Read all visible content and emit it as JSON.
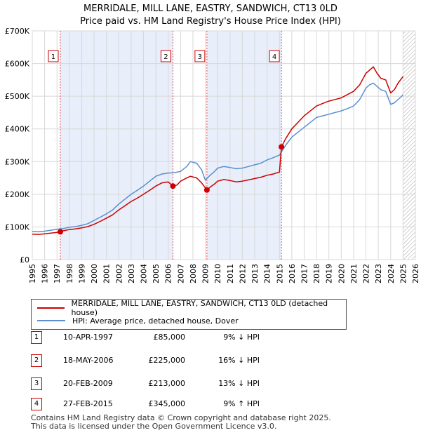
{
  "title_line1": "MERRIDALE, MILL LANE, EASTRY, SANDWICH, CT13 0LD",
  "title_line2": "Price paid vs. HM Land Registry's House Price Index (HPI)",
  "legend": {
    "property_label": "MERRIDALE, MILL LANE, EASTRY, SANDWICH, CT13 0LD (detached house)",
    "hpi_label": "HPI: Average price, detached house, Dover"
  },
  "colors": {
    "property": "#cc0000",
    "hpi": "#5b8fd0",
    "shade": "#e8eefa",
    "grid": "#d8d8d8"
  },
  "sales": [
    {
      "num": "1",
      "date": "10-APR-1997",
      "price": "£85,000",
      "hpi_delta": "9% ↓ HPI"
    },
    {
      "num": "2",
      "date": "18-MAY-2006",
      "price": "£225,000",
      "hpi_delta": "16% ↓ HPI"
    },
    {
      "num": "3",
      "date": "20-FEB-2009",
      "price": "£213,000",
      "hpi_delta": "13% ↓ HPI"
    },
    {
      "num": "4",
      "date": "27-FEB-2015",
      "price": "£345,000",
      "hpi_delta": "9% ↑ HPI"
    }
  ],
  "footer": {
    "line1": "Contains HM Land Registry data © Crown copyright and database right 2025.",
    "line2": "This data is licensed under the Open Government Licence v3.0."
  },
  "chart_data": {
    "type": "line",
    "xlim": [
      1995,
      2026
    ],
    "ylim": [
      0,
      700000
    ],
    "x_ticks": [
      1995,
      1996,
      1997,
      1998,
      1999,
      2000,
      2001,
      2002,
      2003,
      2004,
      2005,
      2006,
      2007,
      2008,
      2009,
      2010,
      2011,
      2012,
      2013,
      2014,
      2015,
      2016,
      2017,
      2018,
      2019,
      2020,
      2021,
      2022,
      2023,
      2024,
      2025,
      2026
    ],
    "y_ticks": [
      {
        "value": 0,
        "label": "£0"
      },
      {
        "value": 100000,
        "label": "£100K"
      },
      {
        "value": 200000,
        "label": "£200K"
      },
      {
        "value": 300000,
        "label": "£300K"
      },
      {
        "value": 400000,
        "label": "£400K"
      },
      {
        "value": 500000,
        "label": "£500K"
      },
      {
        "value": 600000,
        "label": "£600K"
      },
      {
        "value": 700000,
        "label": "£700K"
      }
    ],
    "shaded_periods": [
      [
        1997.27,
        2006.38
      ],
      [
        2009.13,
        2015.16
      ]
    ],
    "hatched_from": 2025.0,
    "markers": [
      {
        "label": "1",
        "x": 1997.27,
        "y": 85000
      },
      {
        "label": "2",
        "x": 2006.38,
        "y": 225000
      },
      {
        "label": "3",
        "x": 2009.13,
        "y": 213000
      },
      {
        "label": "4",
        "x": 2015.16,
        "y": 345000
      }
    ],
    "series": [
      {
        "name": "HPI: Average price, detached house, Dover",
        "x": [
          1995.0,
          1995.5,
          1996.0,
          1996.5,
          1997.0,
          1997.5,
          1998.0,
          1998.5,
          1999.0,
          1999.5,
          2000.0,
          2000.5,
          2001.0,
          2001.5,
          2002.0,
          2002.5,
          2003.0,
          2003.5,
          2004.0,
          2004.5,
          2005.0,
          2005.5,
          2006.0,
          2006.5,
          2007.0,
          2007.5,
          2007.8,
          2008.3,
          2008.7,
          2009.0,
          2009.3,
          2009.7,
          2010.0,
          2010.5,
          2011.0,
          2011.5,
          2012.0,
          2012.5,
          2013.0,
          2013.5,
          2014.0,
          2014.5,
          2015.0,
          2015.5,
          2016.0,
          2016.5,
          2017.0,
          2017.5,
          2018.0,
          2018.5,
          2019.0,
          2019.5,
          2020.0,
          2020.5,
          2021.0,
          2021.5,
          2022.0,
          2022.3,
          2022.6,
          2022.9,
          2023.2,
          2023.6,
          2024.0,
          2024.3,
          2024.6,
          2024.9,
          2025.0
        ],
        "values": [
          86000,
          85000,
          87000,
          90000,
          93000,
          95000,
          99000,
          101000,
          105000,
          110000,
          120000,
          130000,
          140000,
          152000,
          170000,
          185000,
          200000,
          212000,
          225000,
          240000,
          255000,
          262000,
          265000,
          266000,
          270000,
          285000,
          300000,
          295000,
          275000,
          243000,
          255000,
          268000,
          280000,
          285000,
          282000,
          278000,
          280000,
          285000,
          290000,
          295000,
          305000,
          312000,
          320000,
          350000,
          375000,
          390000,
          405000,
          420000,
          435000,
          440000,
          445000,
          450000,
          455000,
          462000,
          470000,
          490000,
          525000,
          535000,
          540000,
          530000,
          520000,
          515000,
          475000,
          480000,
          490000,
          500000,
          505000
        ]
      },
      {
        "name": "MERRIDALE, MILL LANE, EASTRY, SANDWICH, CT13 0LD (detached house)",
        "x": [
          1995.0,
          1995.5,
          1996.0,
          1996.5,
          1997.0,
          1997.27,
          1997.5,
          1998.0,
          1998.5,
          1999.0,
          1999.5,
          2000.0,
          2000.5,
          2001.0,
          2001.5,
          2002.0,
          2002.5,
          2003.0,
          2003.5,
          2004.0,
          2004.5,
          2005.0,
          2005.5,
          2006.0,
          2006.38,
          2006.7,
          2007.0,
          2007.5,
          2007.8,
          2008.3,
          2008.7,
          2009.13,
          2009.4,
          2009.7,
          2010.0,
          2010.5,
          2011.0,
          2011.5,
          2012.0,
          2012.5,
          2013.0,
          2013.5,
          2014.0,
          2014.5,
          2015.0,
          2015.16,
          2015.5,
          2016.0,
          2016.5,
          2017.0,
          2017.5,
          2018.0,
          2018.5,
          2019.0,
          2019.5,
          2020.0,
          2020.5,
          2021.0,
          2021.5,
          2022.0,
          2022.3,
          2022.6,
          2022.9,
          2023.2,
          2023.6,
          2024.0,
          2024.3,
          2024.6,
          2024.9,
          2025.0
        ],
        "values": [
          78000,
          77000,
          79000,
          81000,
          83000,
          85000,
          88000,
          92000,
          94000,
          97000,
          101000,
          108000,
          117000,
          127000,
          137000,
          152000,
          165000,
          178000,
          188000,
          200000,
          212000,
          225000,
          235000,
          238000,
          225000,
          228000,
          240000,
          250000,
          255000,
          250000,
          235000,
          213000,
          222000,
          230000,
          240000,
          245000,
          242000,
          238000,
          240000,
          244000,
          248000,
          252000,
          258000,
          262000,
          268000,
          345000,
          370000,
          400000,
          420000,
          440000,
          455000,
          470000,
          478000,
          485000,
          490000,
          495000,
          505000,
          515000,
          535000,
          570000,
          580000,
          590000,
          570000,
          555000,
          550000,
          510000,
          520000,
          540000,
          555000,
          560000
        ]
      }
    ]
  }
}
